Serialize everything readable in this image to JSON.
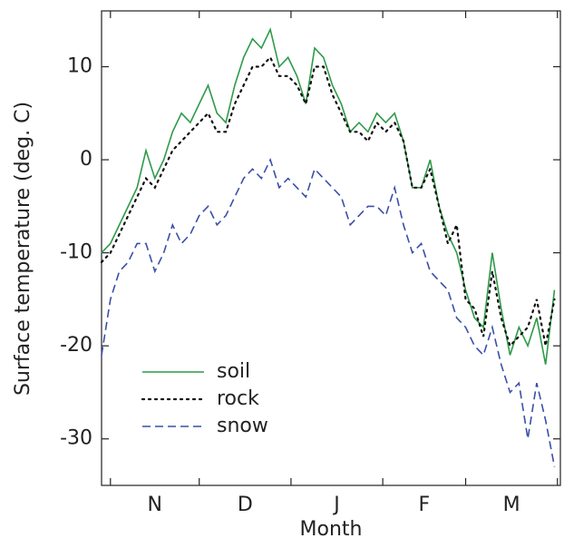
{
  "chart_data": {
    "type": "line",
    "xlabel": "Month",
    "ylabel": "Surface temperature (deg. C)",
    "categories": [
      "N",
      "D",
      "J",
      "F",
      "M"
    ],
    "x": [
      -3,
      0,
      3,
      6,
      9,
      12,
      15,
      18,
      21,
      24,
      27,
      30,
      33,
      36,
      39,
      42,
      45,
      48,
      51,
      54,
      57,
      60,
      63,
      66,
      69,
      72,
      75,
      78,
      81,
      84,
      87,
      90,
      93,
      96,
      99,
      102,
      105,
      108,
      111,
      114,
      117,
      120,
      123,
      126,
      129,
      132,
      135,
      138,
      141,
      144,
      147,
      150
    ],
    "xlim": [
      -3,
      152
    ],
    "xticks": [
      0,
      30,
      61,
      92,
      120,
      151
    ],
    "ylim": [
      -35,
      16
    ],
    "yticks": [
      -30,
      -20,
      -10,
      0,
      10
    ],
    "legend": "lower left",
    "series": [
      {
        "name": "soil",
        "color": "#2e9a4a",
        "style": "solid",
        "values": [
          -10,
          -9,
          -7,
          -5,
          -3,
          1,
          -2,
          0,
          3,
          5,
          4,
          6,
          8,
          5,
          4,
          8,
          11,
          13,
          12,
          14,
          10,
          11,
          9,
          6,
          12,
          11,
          8,
          6,
          3,
          4,
          3,
          5,
          4,
          5,
          2,
          -3,
          -3,
          0,
          -5,
          -8,
          -10,
          -14,
          -17,
          -18,
          -10,
          -16,
          -21,
          -18,
          -20,
          -17,
          -22,
          -14
        ]
      },
      {
        "name": "rock",
        "color": "#111111",
        "style": "dotted",
        "values": [
          -11,
          -10,
          -8,
          -6,
          -4,
          -2,
          -3,
          -1,
          1,
          2,
          3,
          4,
          5,
          3,
          3,
          6,
          8,
          10,
          10,
          11,
          9,
          9,
          8,
          6,
          10,
          10,
          7,
          5,
          3,
          3,
          2,
          4,
          3,
          4,
          2,
          -3,
          -3,
          -1,
          -5,
          -9,
          -7,
          -15,
          -16,
          -19,
          -12,
          -17,
          -20,
          -19,
          -18,
          -15,
          -20,
          -15
        ]
      },
      {
        "name": "snow",
        "color": "#3a4fa8",
        "style": "dashed",
        "values": [
          -21,
          -15,
          -12,
          -11,
          -9,
          -9,
          -12,
          -10,
          -7,
          -9,
          -8,
          -6,
          -5,
          -7,
          -6,
          -4,
          -2,
          -1,
          -2,
          0,
          -3,
          -2,
          -3,
          -4,
          -1,
          -2,
          -3,
          -4,
          -7,
          -6,
          -5,
          -5,
          -6,
          -3,
          -7,
          -10,
          -9,
          -12,
          -13,
          -14,
          -17,
          -18,
          -20,
          -21,
          -18,
          -22,
          -25,
          -24,
          -30,
          -24,
          -28,
          -33
        ]
      }
    ]
  }
}
